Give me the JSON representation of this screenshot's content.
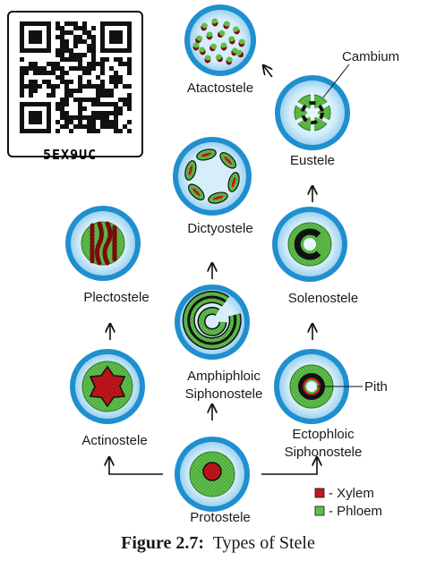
{
  "qr": {
    "code": "5EX9UC"
  },
  "stele_types": {
    "atactostele": "Atactostele",
    "eustele": "Eustele",
    "cambium": "Cambium",
    "dictyostele": "Dictyostele",
    "plectostele": "Plectostele",
    "solenostele": "Solenostele",
    "amphiphloic_1": "Amphiphloic",
    "amphiphloic_2": "Siphonostele",
    "pith": "Pith",
    "actinostele": "Actinostele",
    "ectophloic_1": "Ectophloic",
    "ectophloic_2": "Siphonostele",
    "protostele": "Protostele"
  },
  "legend": {
    "xylem": "- Xylem",
    "phloem": "- Phloem",
    "xylem_color": "#c4161c",
    "phloem_color": "#5fbf4a"
  },
  "colors": {
    "outer": "#1f8fd0",
    "cortex": "#c8e8f8",
    "arrow": "#111111"
  },
  "caption": {
    "label": "Figure 2.7:",
    "text": "Types of Stele"
  }
}
